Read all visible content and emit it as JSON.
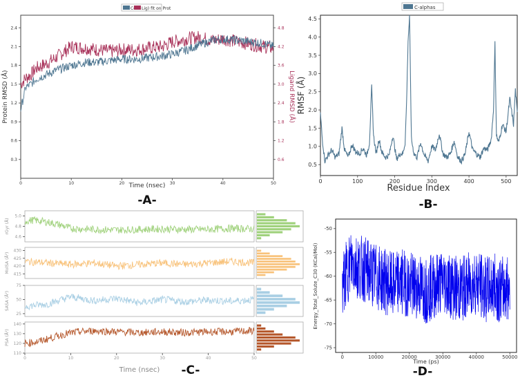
{
  "panels": {
    "a": "-A-",
    "b": "-B-",
    "c": "-C-",
    "d": "-D-"
  },
  "chart_data": [
    {
      "id": "A",
      "type": "line",
      "legend": [
        {
          "name": "Cα",
          "color": "#4e7691"
        },
        {
          "name": "Lig) fit on Prot",
          "color": "#a83058"
        }
      ],
      "xlabel": "Time (nsec)",
      "ylabel_left": "Protein RMSD (Å)",
      "ylabel_right": "Ligand RMSD (Å)",
      "xlim": [
        0,
        50
      ],
      "ylim_left": [
        0,
        2.6
      ],
      "ylim_right": [
        0,
        5.2
      ],
      "xticks": [
        "0",
        "10",
        "20",
        "30",
        "40",
        "50"
      ],
      "yticks_left": [
        "0.3",
        "0.6",
        "0.9",
        "1.2",
        "1.5",
        "1.8",
        "2.1",
        "2.4"
      ],
      "yticks_right": [
        "0.6",
        "1.2",
        "1.8",
        "2.4",
        "3.0",
        "3.6",
        "4.2",
        "4.8"
      ],
      "series": [
        {
          "name": "Protein Cα RMSD",
          "axis": "left",
          "color": "#4e7691",
          "x": [
            0,
            1,
            2,
            3,
            5,
            7,
            10,
            13,
            15,
            18,
            20,
            23,
            25,
            28,
            30,
            33,
            35,
            38,
            40,
            43,
            45,
            48,
            50
          ],
          "y": [
            1.1,
            1.45,
            1.5,
            1.58,
            1.65,
            1.72,
            1.8,
            1.85,
            1.85,
            1.88,
            1.9,
            1.9,
            1.92,
            1.95,
            1.98,
            2.05,
            2.12,
            2.2,
            2.22,
            2.2,
            2.18,
            2.15,
            2.1
          ]
        },
        {
          "name": "Ligand RMSD",
          "axis": "right",
          "color": "#a83058",
          "x": [
            0,
            1,
            2,
            3,
            5,
            7,
            10,
            13,
            15,
            18,
            20,
            23,
            25,
            28,
            30,
            33,
            35,
            38,
            40,
            43,
            45,
            48,
            50
          ],
          "y": [
            3.0,
            3.2,
            3.3,
            3.5,
            3.65,
            3.85,
            4.2,
            4.15,
            4.1,
            4.05,
            4.1,
            4.1,
            4.15,
            4.2,
            4.35,
            4.45,
            4.5,
            4.4,
            4.45,
            4.35,
            4.3,
            4.2,
            4.15
          ]
        }
      ]
    },
    {
      "id": "B",
      "type": "line",
      "legend": [
        {
          "name": "C-alphas",
          "color": "#4e7691"
        }
      ],
      "xlabel": "Residue Index",
      "ylabel": "RMSF (Å)",
      "xlim": [
        0,
        530
      ],
      "ylim": [
        0.2,
        4.6
      ],
      "xticks": [
        "0",
        "100",
        "200",
        "300",
        "400",
        "500"
      ],
      "yticks": [
        "0.5",
        "1.0",
        "1.5",
        "2.0",
        "2.5",
        "3.0",
        "3.5",
        "4.0",
        "4.5"
      ],
      "series": [
        {
          "name": "C-alphas",
          "color": "#4e7691",
          "x": [
            0,
            5,
            12,
            20,
            30,
            40,
            50,
            58,
            65,
            75,
            85,
            95,
            105,
            115,
            125,
            132,
            138,
            143,
            150,
            158,
            165,
            175,
            185,
            195,
            205,
            215,
            222,
            228,
            232,
            236,
            240,
            245,
            252,
            260,
            270,
            280,
            290,
            300,
            310,
            320,
            330,
            340,
            350,
            360,
            370,
            380,
            390,
            400,
            410,
            420,
            430,
            440,
            450,
            460,
            466,
            470,
            474,
            480,
            490,
            500,
            510,
            520,
            525,
            530
          ],
          "y": [
            1.9,
            1.2,
            0.6,
            0.75,
            0.9,
            0.7,
            0.8,
            1.5,
            0.9,
            0.7,
            1.05,
            0.85,
            0.8,
            0.95,
            0.75,
            1.1,
            2.62,
            1.3,
            0.8,
            1.2,
            0.85,
            0.7,
            0.75,
            1.3,
            0.65,
            0.8,
            0.8,
            1.1,
            2.2,
            3.9,
            4.55,
            1.2,
            0.8,
            0.7,
            1.1,
            0.75,
            0.6,
            1.0,
            0.9,
            1.35,
            0.8,
            0.7,
            0.8,
            1.15,
            0.7,
            0.6,
            0.8,
            1.4,
            0.9,
            0.8,
            0.7,
            0.95,
            0.9,
            1.2,
            2.0,
            3.82,
            1.3,
            1.1,
            1.6,
            1.4,
            2.3,
            1.6,
            2.55,
            1.9
          ]
        }
      ]
    },
    {
      "id": "C",
      "type": "line",
      "xlabel": "Time (nsec)",
      "xlim": [
        0,
        50
      ],
      "xticks": [
        "0",
        "10",
        "20",
        "30",
        "40",
        "50"
      ],
      "subplots": [
        {
          "ylabel": "rGyr (Å)",
          "color": "#9fd17b",
          "ylim": [
            4.5,
            5.1
          ],
          "yticks": [
            "4.6",
            "4.8",
            "5.0"
          ],
          "x": [
            0,
            2,
            5,
            8,
            10,
            15,
            20,
            25,
            30,
            35,
            40,
            45,
            50
          ],
          "y": [
            4.9,
            4.92,
            4.88,
            4.82,
            4.76,
            4.74,
            4.73,
            4.74,
            4.75,
            4.74,
            4.74,
            4.76,
            4.75
          ],
          "hist": [
            2,
            4,
            7,
            9,
            10,
            8,
            6,
            3,
            1
          ]
        },
        {
          "ylabel": "MolSA (Å²)",
          "color": "#f8c27a",
          "ylim": [
            412,
            432
          ],
          "yticks": [
            "415",
            "420",
            "425",
            "430"
          ],
          "x": [
            0,
            5,
            10,
            15,
            20,
            25,
            30,
            35,
            40,
            45,
            50
          ],
          "y": [
            423,
            422,
            421,
            422,
            420,
            421,
            422,
            421,
            422,
            423,
            422
          ],
          "hist": [
            1,
            3,
            6,
            8,
            9,
            10,
            9,
            7,
            4,
            2
          ]
        },
        {
          "ylabel": "SASA (Å²)",
          "color": "#a9cfe4",
          "ylim": [
            20,
            75
          ],
          "yticks": [
            "25",
            "50",
            "75"
          ],
          "x": [
            0,
            5,
            10,
            15,
            20,
            25,
            30,
            35,
            40,
            45,
            50
          ],
          "y": [
            38,
            42,
            55,
            48,
            52,
            44,
            50,
            46,
            49,
            47,
            50
          ],
          "hist": [
            1,
            3,
            6,
            9,
            10,
            7,
            4,
            2
          ]
        },
        {
          "ylabel": "PSA (Å²)",
          "color": "#b5572b",
          "ylim": [
            110,
            142
          ],
          "yticks": [
            "110",
            "120",
            "130",
            "140"
          ],
          "x": [
            0,
            3,
            6,
            9,
            12,
            15,
            20,
            25,
            30,
            35,
            40,
            45,
            50
          ],
          "y": [
            120,
            122,
            126,
            130,
            132,
            133,
            132,
            131,
            132,
            131,
            132,
            132,
            133
          ],
          "hist": [
            1,
            2,
            4,
            6,
            9,
            10,
            8,
            4,
            1
          ]
        }
      ]
    },
    {
      "id": "D",
      "type": "line",
      "xlabel": "Time (ps)",
      "ylabel": "Energy_Total_Solute_C30 (KCal/Mol)",
      "xlim": [
        -2000,
        52000
      ],
      "ylim": [
        -76,
        -48
      ],
      "xticks": [
        "0",
        "10000",
        "20000",
        "30000",
        "40000",
        "50000"
      ],
      "yticks": [
        "-75",
        "-70",
        "-65",
        "-60",
        "-55",
        "-50"
      ],
      "series": [
        {
          "name": "Energy",
          "color": "#0000ee",
          "x": [
            0,
            2500,
            5000,
            7500,
            10000,
            12500,
            15000,
            17500,
            20000,
            22500,
            25000,
            27500,
            30000,
            32500,
            35000,
            37500,
            40000,
            42500,
            45000,
            47500,
            50000
          ],
          "y": [
            -62,
            -57,
            -58,
            -59,
            -60,
            -61,
            -62,
            -61,
            -62,
            -62,
            -63,
            -62,
            -61,
            -62,
            -63,
            -62,
            -61,
            -63,
            -62,
            -63,
            -62
          ]
        }
      ]
    }
  ]
}
